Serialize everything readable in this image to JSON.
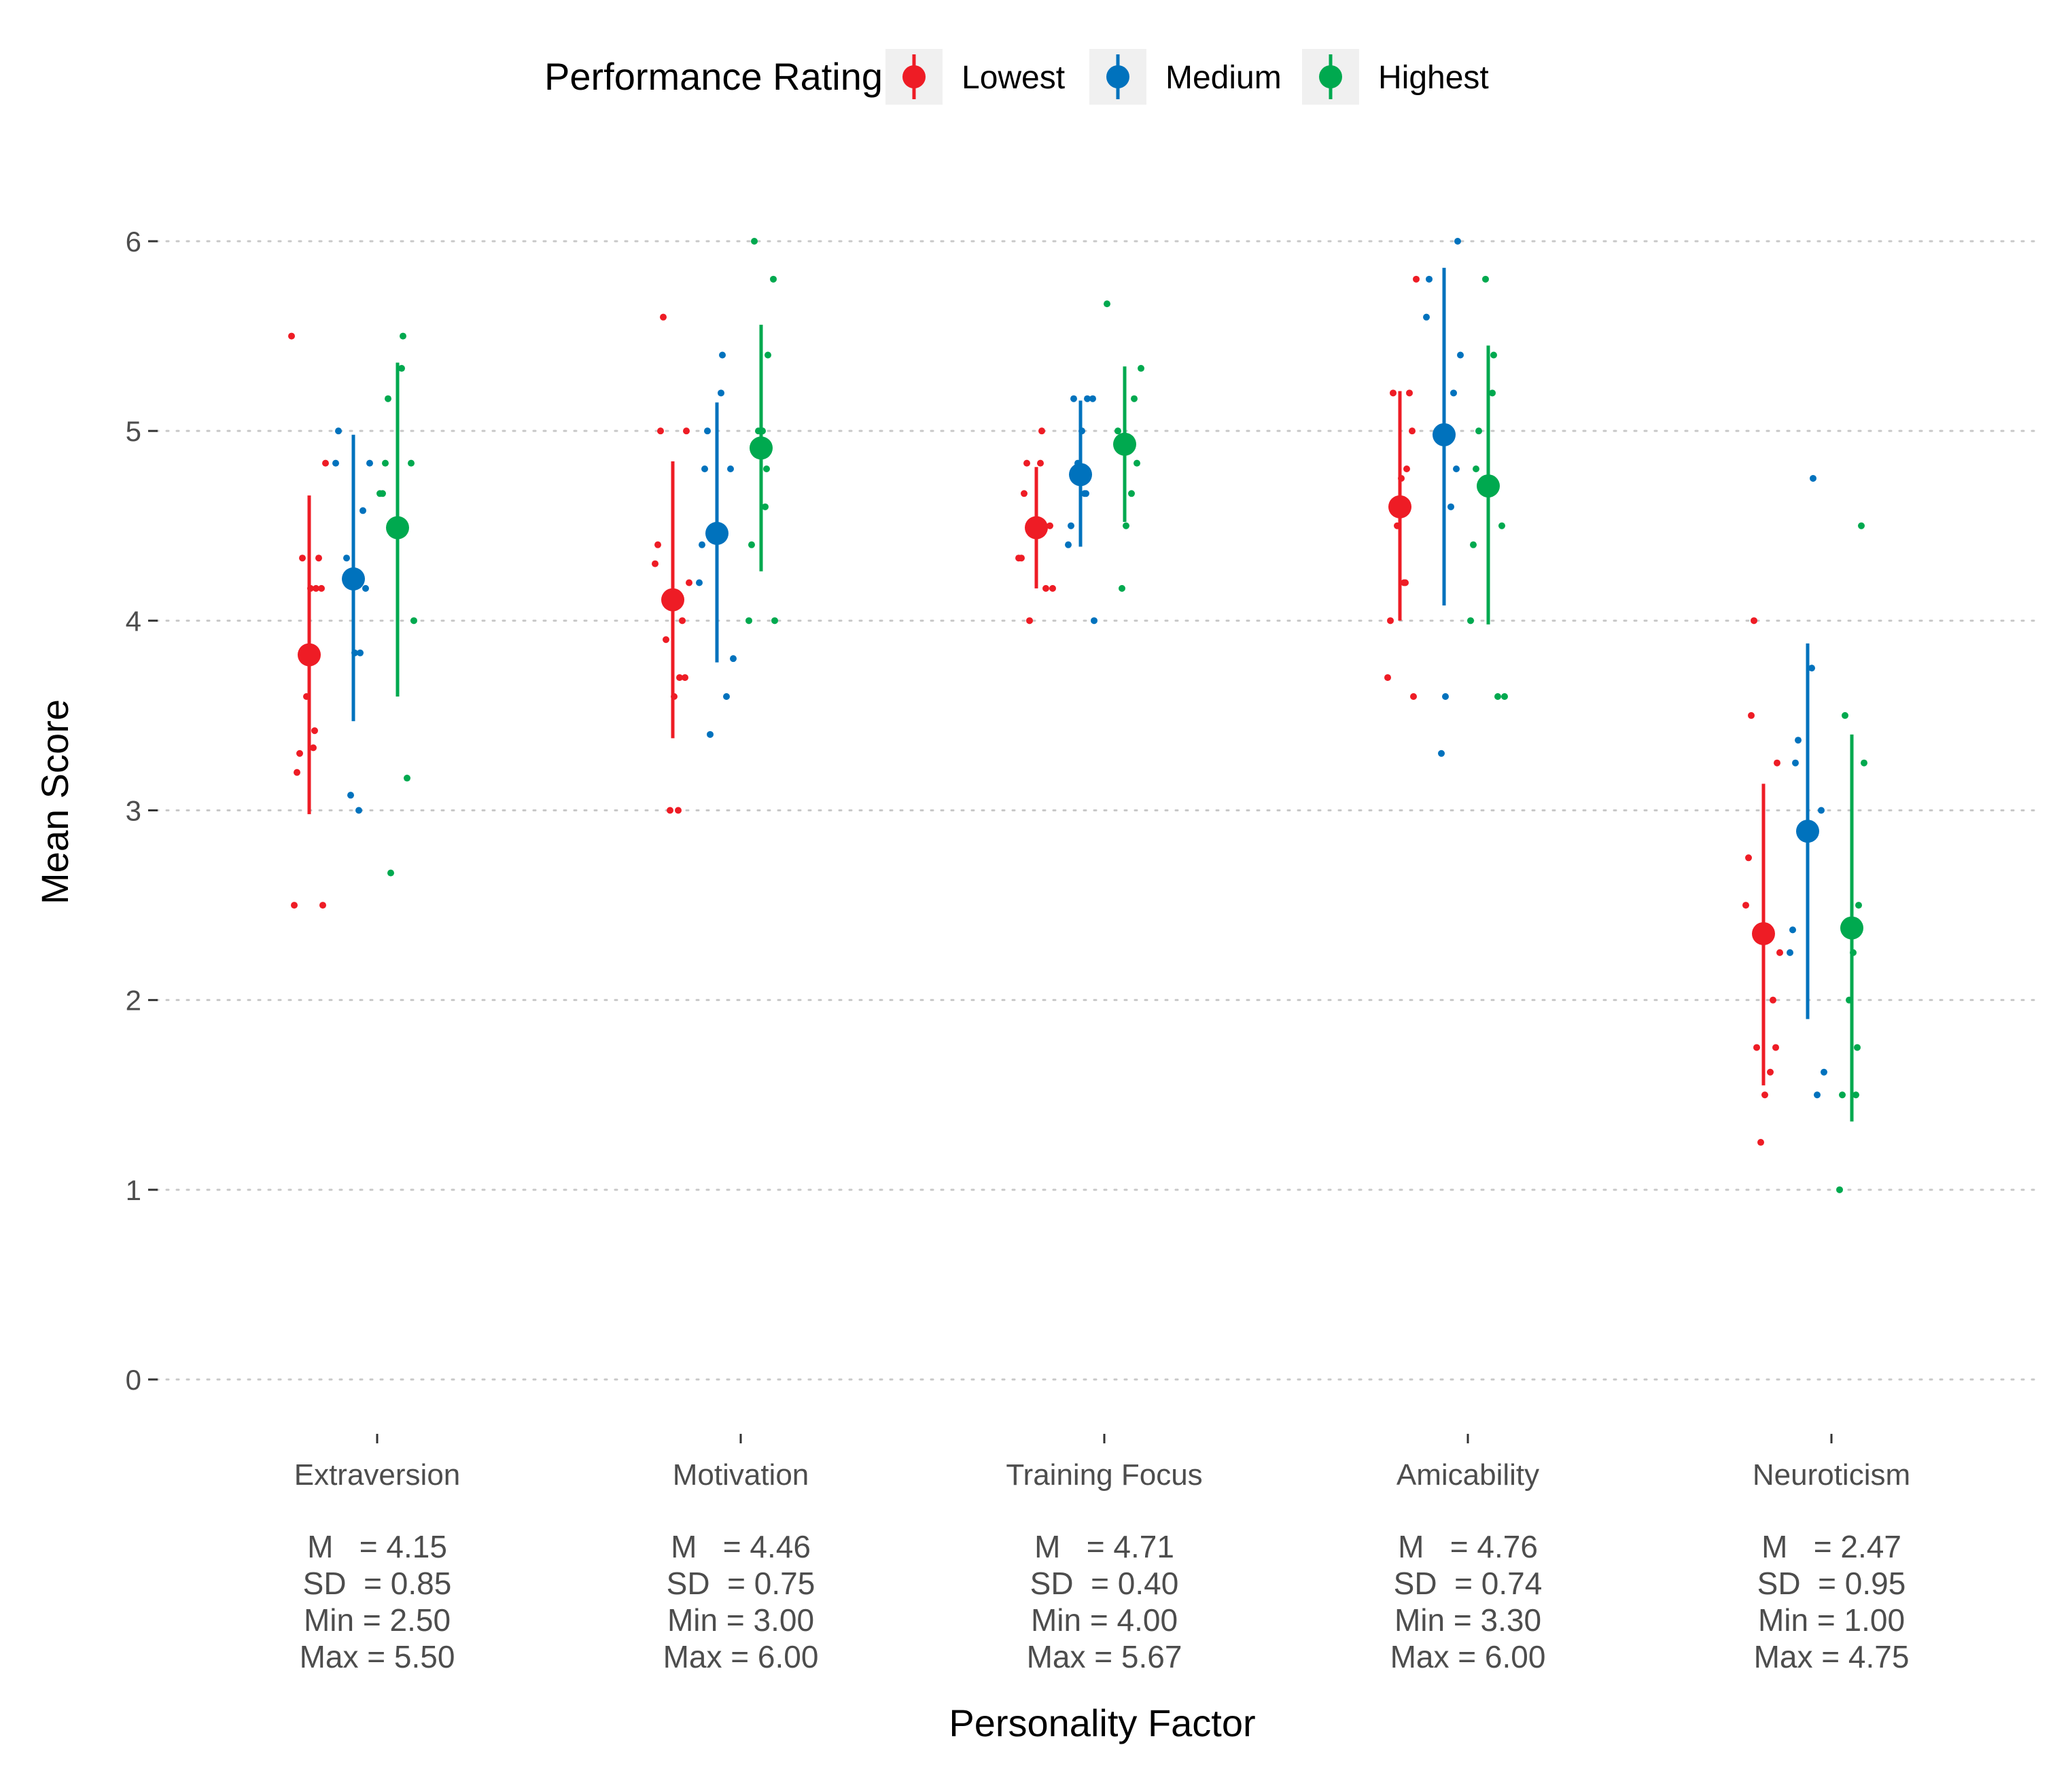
{
  "chart_data": {
    "type": "scatter",
    "title": "",
    "xlabel": "Personality Factor",
    "ylabel": "Mean Score",
    "ylim": [
      0,
      6
    ],
    "yticks": [
      0,
      1,
      2,
      3,
      4,
      5,
      6
    ],
    "grid": "horizontal dotted",
    "legend": {
      "title": "Performance Rating",
      "position": "top",
      "entries": [
        "Lowest",
        "Medium",
        "Highest"
      ]
    },
    "colors": {
      "Lowest": "#ee1c25",
      "Medium": "#0072bd",
      "Highest": "#00a94f"
    },
    "categories": [
      {
        "name": "Extraversion",
        "stats": {
          "M": "M   = 4.15",
          "SD": "SD  = 0.85",
          "Min": "Min = 2.50",
          "Max": "Max = 5.50"
        }
      },
      {
        "name": "Motivation",
        "stats": {
          "M": "M   = 4.46",
          "SD": "SD  = 0.75",
          "Min": "Min = 3.00",
          "Max": "Max = 6.00"
        }
      },
      {
        "name": "Training Focus",
        "stats": {
          "M": "M   = 4.71",
          "SD": "SD  = 0.40",
          "Min": "Min = 4.00",
          "Max": "Max = 5.67"
        }
      },
      {
        "name": "Amicability",
        "stats": {
          "M": "M   = 4.76",
          "SD": "SD  = 0.74",
          "Min": "Min = 3.30",
          "Max": "Max = 6.00"
        }
      },
      {
        "name": "Neuroticism",
        "stats": {
          "M": "M   = 2.47",
          "SD": "SD  = 0.95",
          "Min": "Min = 1.00",
          "Max": "Max = 4.75"
        }
      }
    ],
    "series": [
      {
        "name": "Lowest",
        "means": [
          3.82,
          4.11,
          4.49,
          4.6,
          2.35
        ],
        "lower": [
          2.98,
          3.38,
          4.17,
          4.0,
          1.55
        ],
        "upper": [
          4.66,
          4.84,
          4.81,
          5.21,
          3.14
        ],
        "points": [
          [
            2.5,
            2.5,
            3.2,
            3.3,
            3.33,
            3.42,
            3.6,
            4.17,
            4.17,
            4.17,
            4.33,
            4.33,
            4.83,
            5.5
          ],
          [
            3.0,
            3.0,
            3.6,
            3.7,
            3.7,
            3.9,
            4.0,
            4.2,
            4.3,
            4.4,
            5.0,
            5.0,
            5.6
          ],
          [
            4.0,
            4.17,
            4.17,
            4.33,
            4.33,
            4.5,
            4.67,
            4.83,
            4.83,
            5.0
          ],
          [
            3.6,
            3.7,
            4.0,
            4.2,
            4.2,
            4.5,
            4.75,
            4.8,
            5.0,
            5.2,
            5.2,
            5.8
          ],
          [
            1.25,
            1.5,
            1.62,
            1.75,
            1.75,
            2.0,
            2.25,
            2.5,
            2.75,
            3.25,
            3.5,
            4.0
          ]
        ]
      },
      {
        "name": "Medium",
        "means": [
          4.22,
          4.46,
          4.77,
          4.98,
          2.89
        ],
        "lower": [
          3.47,
          3.78,
          4.39,
          4.08,
          1.9
        ],
        "upper": [
          4.98,
          5.15,
          5.16,
          5.86,
          3.88
        ],
        "points": [
          [
            3.0,
            3.08,
            3.83,
            3.83,
            4.17,
            4.33,
            4.58,
            4.83,
            4.83,
            5.0
          ],
          [
            3.4,
            3.6,
            3.8,
            4.2,
            4.4,
            4.8,
            4.8,
            5.0,
            5.2,
            5.4
          ],
          [
            4.0,
            4.4,
            4.5,
            4.67,
            4.67,
            4.83,
            5.0,
            5.17,
            5.17,
            5.17
          ],
          [
            3.3,
            3.6,
            4.6,
            4.8,
            5.0,
            5.2,
            5.4,
            5.6,
            5.8,
            6.0
          ],
          [
            1.5,
            1.62,
            2.25,
            2.37,
            3.0,
            3.25,
            3.37,
            3.75,
            4.75
          ]
        ]
      },
      {
        "name": "Highest",
        "means": [
          4.49,
          4.91,
          4.93,
          4.71,
          2.38
        ],
        "lower": [
          3.6,
          4.26,
          4.52,
          3.98,
          1.36
        ],
        "upper": [
          5.36,
          5.56,
          5.34,
          5.45,
          3.4
        ],
        "points": [
          [
            2.67,
            3.17,
            4.0,
            4.67,
            4.67,
            4.83,
            4.83,
            5.17,
            5.33,
            5.5
          ],
          [
            4.0,
            4.0,
            4.4,
            4.6,
            4.8,
            5.0,
            5.0,
            5.4,
            5.8,
            6.0
          ],
          [
            4.17,
            4.5,
            4.67,
            4.83,
            5.0,
            5.17,
            5.33,
            5.67
          ],
          [
            3.6,
            3.6,
            4.0,
            4.4,
            4.5,
            4.8,
            5.0,
            5.2,
            5.4,
            5.8
          ],
          [
            1.0,
            1.5,
            1.5,
            1.75,
            2.0,
            2.25,
            2.5,
            3.25,
            3.5,
            4.5
          ]
        ]
      }
    ]
  }
}
